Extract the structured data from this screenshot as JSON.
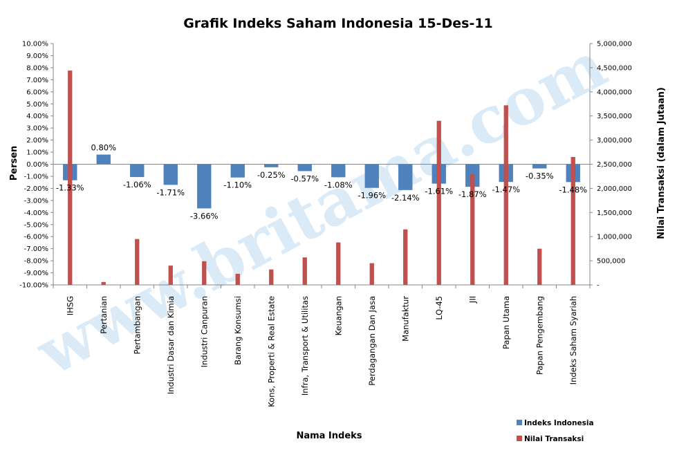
{
  "watermark": "www.britama.com",
  "chart_data": {
    "type": "bar",
    "title": "Grafik Indeks Saham Indonesia 15-Des-11",
    "xlabel": "Nama Indeks",
    "ylabel": "Persen",
    "y2label": "Nilai Transaksi (dalam Jutaan)",
    "ylim": [
      -0.1,
      0.1
    ],
    "y2lim": [
      0,
      5000000
    ],
    "y_ticks": [
      "10.00%",
      "9.00%",
      "8.00%",
      "7.00%",
      "6.00%",
      "5.00%",
      "4.00%",
      "3.00%",
      "2.00%",
      "1.00%",
      "0.00%",
      "-1.00%",
      "-2.00%",
      "-3.00%",
      "-4.00%",
      "-5.00%",
      "-6.00%",
      "-7.00%",
      "-8.00%",
      "-9.00%",
      "-10.00%"
    ],
    "y_tick_values": [
      0.1,
      0.09,
      0.08,
      0.07,
      0.06,
      0.05,
      0.04,
      0.03,
      0.02,
      0.01,
      0,
      -0.01,
      -0.02,
      -0.03,
      -0.04,
      -0.05,
      -0.06,
      -0.07,
      -0.08,
      -0.09,
      -0.1
    ],
    "y2_ticks": [
      "5,000,000",
      "4,500,000",
      "4,000,000",
      "3,500,000",
      "3,000,000",
      "2,500,000",
      "2,000,000",
      "1,500,000",
      "1,000,000",
      "500,000",
      "-"
    ],
    "y2_tick_values": [
      5000000,
      4500000,
      4000000,
      3500000,
      3000000,
      2500000,
      2000000,
      1500000,
      1000000,
      500000,
      0
    ],
    "categories": [
      "IHSG",
      "Pertanian",
      "Pertambangan",
      "Industri Dasar dan Kimia",
      "Industri Canpuran",
      "Barang Konsumsi",
      "Kons, Properti & Real Estate",
      "Infra, Transport & Utilitas",
      "Keuangan",
      "Perdagangan Dan Jasa",
      "Manufaktur",
      "LQ-45",
      "JII",
      "Papan Utama",
      "Papan Pengembang",
      "Indeks Saham Syariah"
    ],
    "series": [
      {
        "name": "Indeks Indonesia",
        "color": "#4f81bd",
        "axis": "left",
        "values": [
          -0.0133,
          0.008,
          -0.0106,
          -0.0171,
          -0.0366,
          -0.011,
          -0.0025,
          -0.0057,
          -0.0108,
          -0.0196,
          -0.0214,
          -0.0161,
          -0.0187,
          -0.0147,
          -0.0035,
          -0.0148
        ],
        "labels": [
          "-1.33%",
          "0.80%",
          "-1.06%",
          "-1.71%",
          "-3.66%",
          "-1.10%",
          "-0.25%",
          "-0.57%",
          "-1.08%",
          "-1.96%",
          "-2.14%",
          "-1.61%",
          "-1.87%",
          "-1.47%",
          "-0.35%",
          "-1.48%"
        ]
      },
      {
        "name": "Nilai Transaksi",
        "color": "#c0504d",
        "axis": "right",
        "values": [
          4440000,
          60000,
          950000,
          400000,
          490000,
          230000,
          320000,
          570000,
          880000,
          450000,
          1150000,
          3400000,
          2290000,
          3720000,
          750000,
          2650000
        ]
      }
    ],
    "legend_position": "bottom-right",
    "grid": false
  }
}
